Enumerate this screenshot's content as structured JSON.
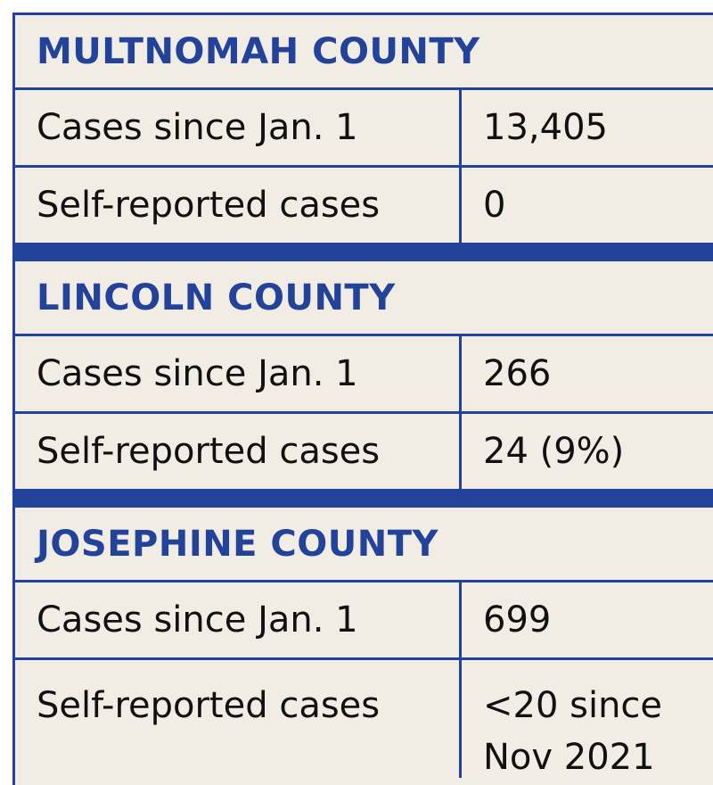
{
  "colors": {
    "accent": "#23439a",
    "background": "#f1ede4",
    "text": "#111111"
  },
  "sections": [
    {
      "county": "MULTNOMAH COUNTY",
      "rows": [
        {
          "label": "Cases since Jan. 1",
          "value": "13,405"
        },
        {
          "label": "Self-reported cases",
          "value": "0"
        }
      ]
    },
    {
      "county": "LINCOLN COUNTY",
      "rows": [
        {
          "label": "Cases since Jan. 1",
          "value": "266"
        },
        {
          "label": "Self-reported cases",
          "value": "24 (9%)"
        }
      ]
    },
    {
      "county": "JOSEPHINE COUNTY",
      "rows": [
        {
          "label": "Cases since Jan. 1",
          "value": "699"
        },
        {
          "label": "Self-reported cases",
          "value": "<20 since Nov 2021"
        }
      ]
    }
  ]
}
